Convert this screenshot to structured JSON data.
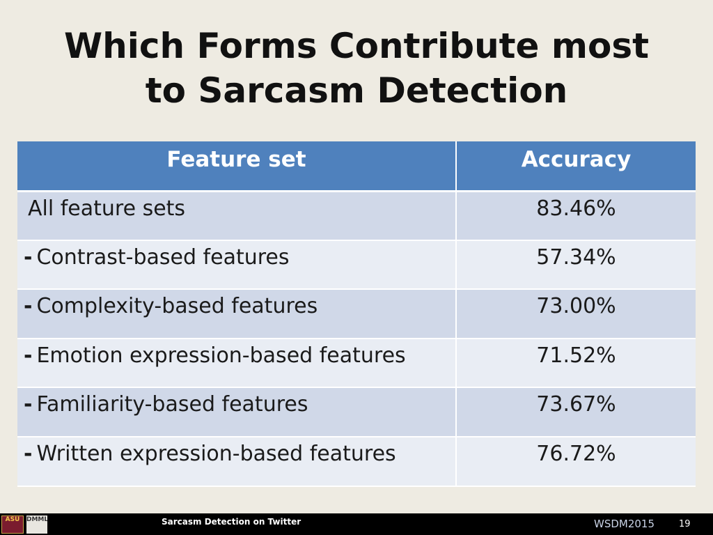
{
  "slide": {
    "title_line1": "Which Forms Contribute most",
    "title_line2": "to Sarcasm Detection"
  },
  "table": {
    "headers": [
      "Feature set",
      "Accuracy"
    ],
    "rows": [
      {
        "prefix": "",
        "label": "All feature sets",
        "accuracy": "83.46%"
      },
      {
        "prefix": "-",
        "label": "Contrast-based features",
        "accuracy": "57.34%"
      },
      {
        "prefix": "-",
        "label": "Complexity-based features",
        "accuracy": "73.00%"
      },
      {
        "prefix": "-",
        "label": "Emotion expression-based features",
        "accuracy": "71.52%"
      },
      {
        "prefix": "-",
        "label": "Familiarity-based features",
        "accuracy": "73.67%"
      },
      {
        "prefix": "-",
        "label": "Written expression-based features",
        "accuracy": "76.72%"
      }
    ]
  },
  "footer": {
    "logo_asu": "ASU",
    "logo_dmml": "DMML",
    "left_text": "Sarcasm Detection on Twitter",
    "conference": "WSDM2015",
    "page_number": "19"
  },
  "colors": {
    "header_blue": "#4f81bd",
    "row_dark": "#d0d8e8",
    "row_light": "#e9edf4",
    "background": "#eeebe2"
  }
}
